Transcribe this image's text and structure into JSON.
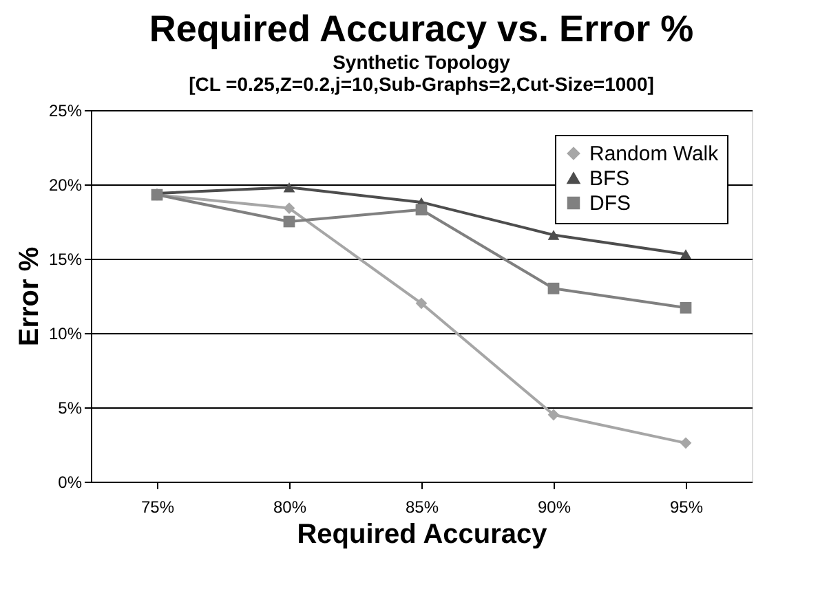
{
  "chart_data": {
    "type": "line",
    "title": "Required Accuracy vs. Error %",
    "subtitle": [
      "Synthetic Topology",
      "[CL =0.25,Z=0.2,j=10,Sub-Graphs=2,Cut-Size=1000]"
    ],
    "xlabel": "Required Accuracy",
    "ylabel": "Error %",
    "categories": [
      "75%",
      "80%",
      "85%",
      "90%",
      "95%"
    ],
    "series": [
      {
        "name": "Random Walk",
        "color": "#a6a6a6",
        "marker": "diamond",
        "values": [
          19.3,
          18.4,
          12.0,
          4.5,
          2.6
        ]
      },
      {
        "name": "BFS",
        "color": "#4d4d4d",
        "marker": "triangle",
        "values": [
          19.4,
          19.8,
          18.8,
          16.6,
          15.3
        ]
      },
      {
        "name": "DFS",
        "color": "#808080",
        "marker": "square",
        "values": [
          19.3,
          17.5,
          18.3,
          13.0,
          11.7
        ]
      }
    ],
    "ylim": [
      0,
      25
    ],
    "yticks": [
      {
        "value": 0,
        "label": "0%"
      },
      {
        "value": 5,
        "label": "5%"
      },
      {
        "value": 10,
        "label": "10%"
      },
      {
        "value": 15,
        "label": "15%"
      },
      {
        "value": 20,
        "label": "20%"
      },
      {
        "value": 25,
        "label": "25%"
      }
    ],
    "grid": "y",
    "legend": "top right",
    "line_style": "solid"
  }
}
